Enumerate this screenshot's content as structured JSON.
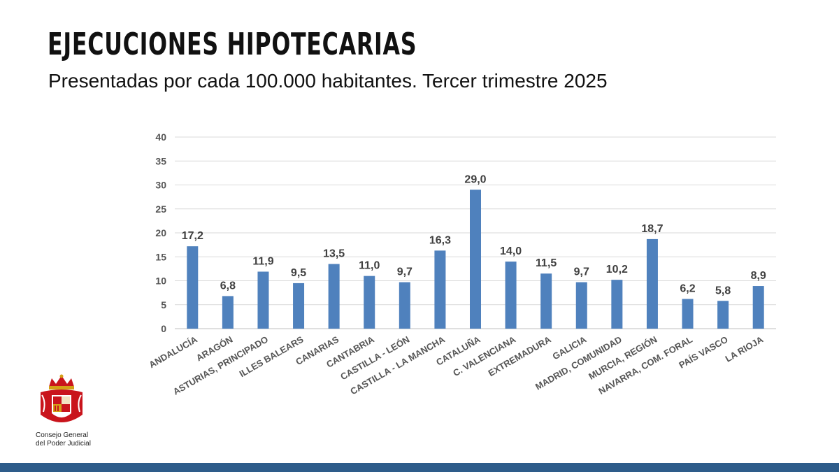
{
  "header": {
    "title": "EJECUCIONES HIPOTECARIAS",
    "subtitle": "Presentadas por cada 100.000 habitantes. Tercer trimestre 2025"
  },
  "branding": {
    "org_line1": "Consejo General",
    "org_line2": "del Poder Judicial",
    "footer_color": "#2e5c8a"
  },
  "chart_data": {
    "type": "bar",
    "title": "",
    "xlabel": "",
    "ylabel": "",
    "ylim": [
      0,
      40
    ],
    "yticks": [
      0,
      5,
      10,
      15,
      20,
      25,
      30,
      35,
      40
    ],
    "grid": true,
    "bar_color": "#4f81bd",
    "categories": [
      "ANDALUCÍA",
      "ARAGÓN",
      "ASTURIAS, PRINCIPADO",
      "ILLES BALEARS",
      "CANARIAS",
      "CANTABRIA",
      "CASTILLA - LEÓN",
      "CASTILLA - LA MANCHA",
      "CATALUÑA",
      "C. VALENCIANA",
      "EXTREMADURA",
      "GALICIA",
      "MADRID, COMUNIDAD",
      "MURCIA, REGIÓN",
      "NAVARRA, COM. FORAL",
      "PAÍS VASCO",
      "LA RIOJA"
    ],
    "values": [
      17.2,
      6.8,
      11.9,
      9.5,
      13.5,
      11.0,
      9.7,
      16.3,
      29.0,
      14.0,
      11.5,
      9.7,
      10.2,
      18.7,
      6.2,
      5.8,
      8.9
    ],
    "value_labels": [
      "17,2",
      "6,8",
      "11,9",
      "9,5",
      "13,5",
      "11,0",
      "9,7",
      "16,3",
      "29,0",
      "14,0",
      "11,5",
      "9,7",
      "10,2",
      "18,7",
      "6,2",
      "5,8",
      "8,9"
    ]
  }
}
